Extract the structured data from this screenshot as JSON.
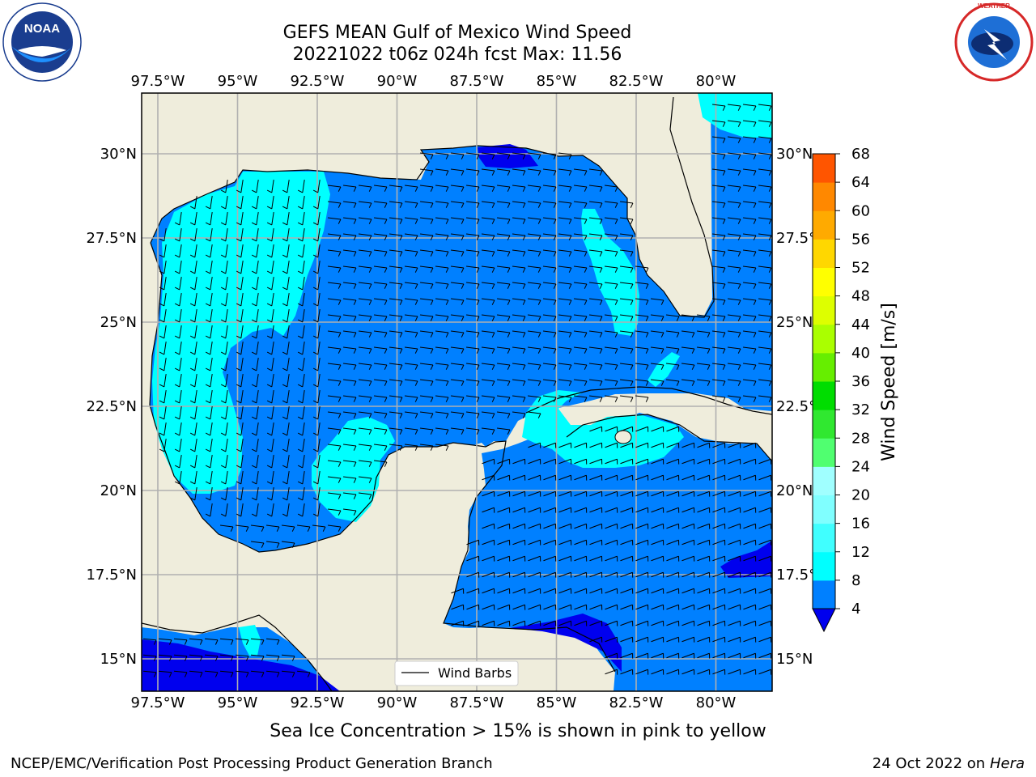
{
  "header": {
    "title_line1": "GEFS MEAN Gulf of Mexico Wind Speed",
    "title_line2": "20221022 t06z 024h fcst   Max: 11.56"
  },
  "logos": {
    "left": {
      "text": "NOAA",
      "ring_text": "NATIONAL OCEANIC AND ATMOSPHERIC ADMINISTRATION · U.S. DEPARTMENT OF COMMERCE"
    },
    "right": {
      "ring_text": "NATIONAL WEATHER SERVICE"
    }
  },
  "map": {
    "lon_ticks_top": [
      "97.5°W",
      "95°W",
      "92.5°W",
      "90°W",
      "87.5°W",
      "85°W",
      "82.5°W",
      "80°W"
    ],
    "lon_ticks_bottom": [
      "97.5°W",
      "95°W",
      "92.5°W",
      "90°W",
      "87.5°W",
      "85°W",
      "82.5°W",
      "80°W"
    ],
    "lat_ticks_left": [
      "30°N",
      "27.5°N",
      "25°N",
      "22.5°N",
      "20°N",
      "17.5°N",
      "15°N"
    ],
    "lat_ticks_right": [
      "30°N",
      "27.5°N",
      "25°N",
      "22.5°N",
      "20°N",
      "17.5°N",
      "15°N"
    ],
    "legend_label": "Wind Barbs"
  },
  "colorbar": {
    "label": "Wind Speed [m/s]",
    "ticks": [
      "4",
      "8",
      "12",
      "16",
      "20",
      "24",
      "28",
      "32",
      "36",
      "40",
      "44",
      "48",
      "52",
      "56",
      "60",
      "64",
      "68"
    ],
    "colors": [
      "#0080ff",
      "#00ffff",
      "#40ffff",
      "#80ffff",
      "#a0ffff",
      "#50ff70",
      "#30e830",
      "#00dd00",
      "#66ee00",
      "#aaff00",
      "#ddff00",
      "#ffff00",
      "#ffd700",
      "#ffaa00",
      "#ff8800",
      "#ff5500",
      "#ff2200",
      "#ff0000"
    ],
    "extend_color": "#0000ee"
  },
  "caption": "Sea Ice Concentration > 15% is shown in pink to yellow",
  "footer": {
    "left": "NCEP/EMC/Verification Post Processing Product Generation Branch",
    "right_date": "24 Oct 2022 on ",
    "right_host": "Hera"
  },
  "colors": {
    "land": "#efeddc",
    "ocean_4_8": "#0080ff",
    "ocean_8_12": "#00ffff",
    "ocean_lt4": "#0000ee",
    "grid": "#b0b0b0"
  }
}
